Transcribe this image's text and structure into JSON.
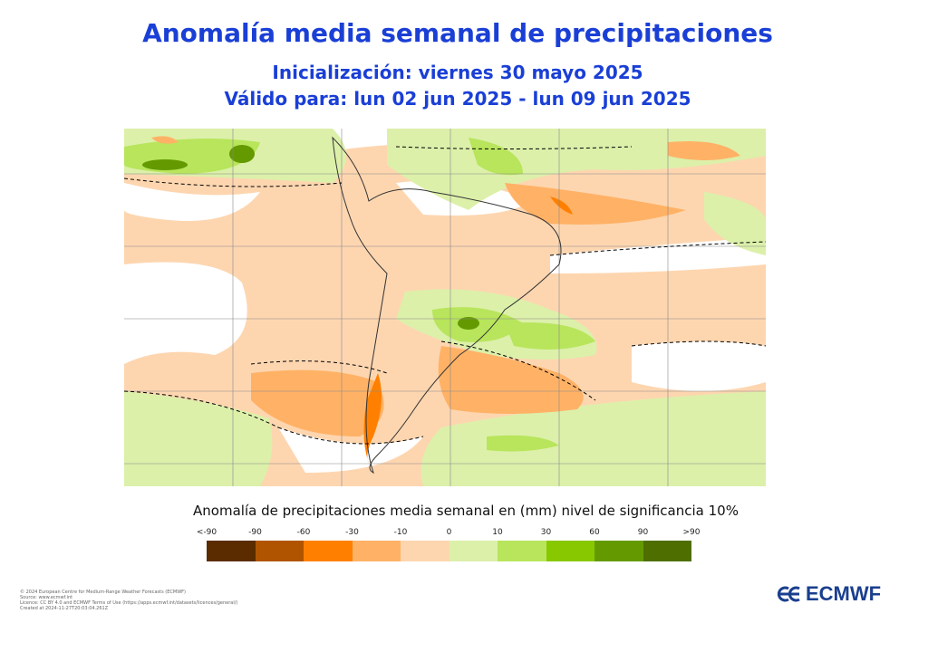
{
  "title": "Anomalía media semanal de precipitaciones",
  "subtitle_init": "Inicialización: viernes 30 mayo 2025",
  "subtitle_valid": "Válido para: lun 02 jun 2025 - lun 09 jun 2025",
  "legend": {
    "title": "Anomalía de precipitaciones media semanal en (mm) nivel de significancia 10%",
    "labels": [
      "<-90",
      "-90",
      "-60",
      "-30",
      "-10",
      "0",
      "10",
      "30",
      "60",
      "90",
      ">90"
    ],
    "colors": [
      "#5a2c00",
      "#b05400",
      "#ff8000",
      "#ffb266",
      "#fdd6b0",
      "#dcf0aa",
      "#b8e55c",
      "#88c800",
      "#649a00",
      "#4e6e00"
    ]
  },
  "footer": [
    "© 2024 European Centre for Medium-Range Weather Forecasts (ECMWF)",
    "Source: www.ecmwf.int",
    "Licence: CC BY 4.0 and ECMWF Terms of Use (https://apps.ecmwf.int/datasets/licences/general/)",
    "Created at 2024-11-27T20:03:04.261Z"
  ],
  "logo": "ECMWF"
}
